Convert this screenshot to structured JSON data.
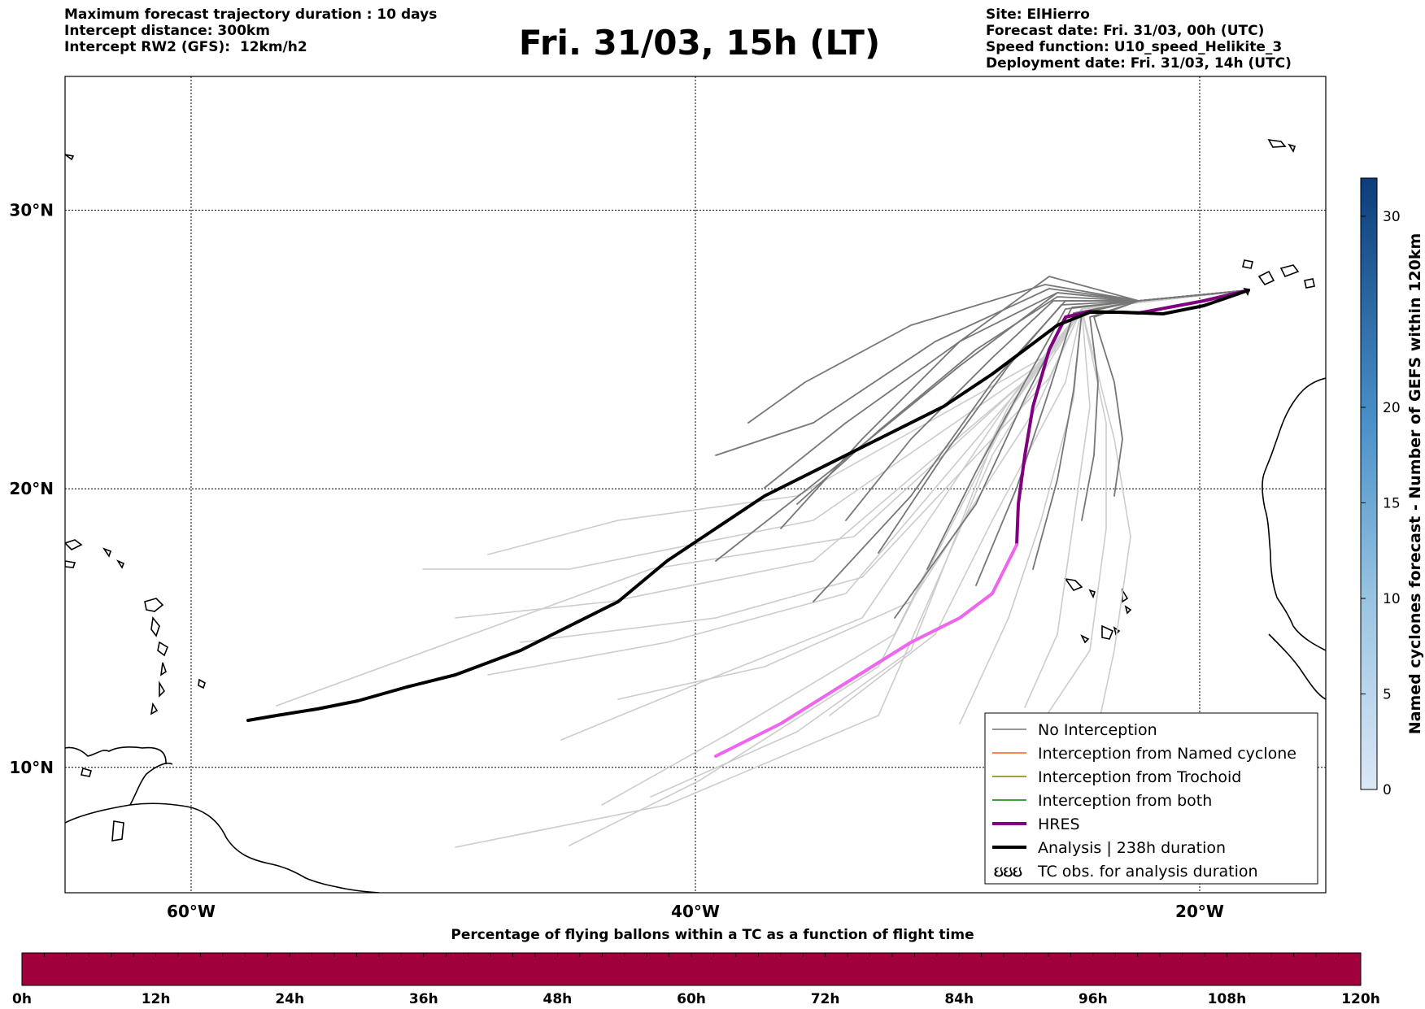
{
  "header": {
    "left_lines": [
      "Maximum forecast trajectory duration : 10 days",
      "Intercept distance: 300km",
      "Intercept RW2 (GFS):  12km/h2"
    ],
    "title": "Fri. 31/03, 15h (LT)",
    "right_lines": [
      "Site: ElHierro",
      "Forecast date: Fri. 31/03, 00h (UTC)",
      "Speed function: U10_speed_Helikite_3",
      "Deployment date: Fri. 31/03, 14h (UTC)"
    ]
  },
  "map": {
    "lon_range": [
      -65,
      -15
    ],
    "lat_range": [
      5.5,
      34.8
    ],
    "meridians": [
      -60,
      -40,
      -20
    ],
    "parallels": [
      10,
      20,
      30
    ],
    "lon_labels": [
      "60°W",
      "40°W",
      "20°W"
    ],
    "lat_labels": [
      "10°N",
      "20°N",
      "30°N"
    ],
    "colors": {
      "no_interception": "#777777",
      "no_interception_late": "#cccccc",
      "named_cyclone": "#ff5a1f",
      "trochoid": "#808000",
      "both": "#008000",
      "hres": "#800080",
      "hres_late": "#ee66ee",
      "analysis": "#000000"
    }
  },
  "legend": {
    "items": [
      {
        "label": "No Interception",
        "style": "no_interception"
      },
      {
        "label": "Interception from Named cyclone",
        "style": "named_cyclone"
      },
      {
        "label": "Interception from Trochoid",
        "style": "trochoid"
      },
      {
        "label": "Interception from both",
        "style": "both"
      },
      {
        "label": "HRES",
        "style": "hres"
      },
      {
        "label": "Analysis | 238h duration",
        "style": "analysis"
      },
      {
        "label": "TC obs. for analysis duration",
        "style": "tc_symbol"
      }
    ],
    "tc_symbol_glyph": "ઇઇઇ"
  },
  "colorbar_right": {
    "label": "Named cyclones forecast - Number of GEFS within 120km",
    "ticks": [
      0,
      5,
      10,
      15,
      20,
      30
    ],
    "range": [
      0,
      32
    ]
  },
  "colorbar_bottom": {
    "title": "Percentage of flying ballons within a TC as a function of flight time",
    "ticks": [
      "0h",
      "12h",
      "24h",
      "36h",
      "48h",
      "60h",
      "72h",
      "84h",
      "96h",
      "108h",
      "120h"
    ],
    "fill_color": "#a0003c"
  }
}
